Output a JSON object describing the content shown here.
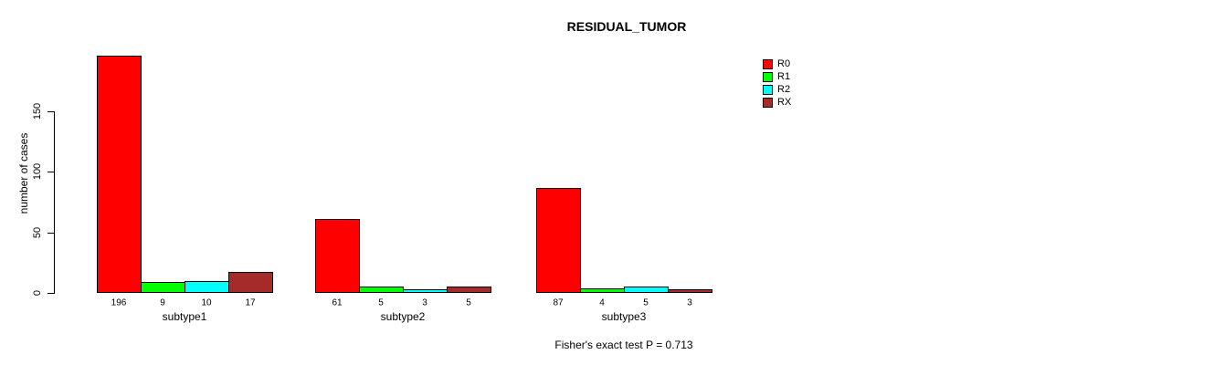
{
  "title": "RESIDUAL_TUMOR",
  "annotation": "Fisher's exact test P = 0.713",
  "chart_data": {
    "type": "bar",
    "title": "RESIDUAL_TUMOR",
    "ylabel": "number of cases",
    "xlabel": "",
    "categories": [
      "subtype1",
      "subtype2",
      "subtype3"
    ],
    "series": [
      {
        "name": "R0",
        "color": "#FF0000",
        "values": [
          196,
          61,
          87
        ]
      },
      {
        "name": "R1",
        "color": "#00FF00",
        "values": [
          9,
          5,
          4
        ]
      },
      {
        "name": "R2",
        "color": "#00FFFF",
        "values": [
          10,
          3,
          5
        ]
      },
      {
        "name": "RX",
        "color": "#A52A2A",
        "values": [
          17,
          5,
          3
        ]
      }
    ],
    "bar_value_labels": [
      [
        "196",
        "9",
        "10",
        "17"
      ],
      [
        "61",
        "5",
        "3",
        "5"
      ],
      [
        "87",
        "4",
        "5",
        "3"
      ]
    ],
    "yticks": [
      0,
      50,
      100,
      150
    ],
    "ylim": [
      0,
      200
    ],
    "grid": false,
    "legend_position": "top-right",
    "legend_entries": [
      "R0",
      "R1",
      "R2",
      "RX"
    ],
    "annotation": "Fisher's exact test P = 0.713"
  }
}
